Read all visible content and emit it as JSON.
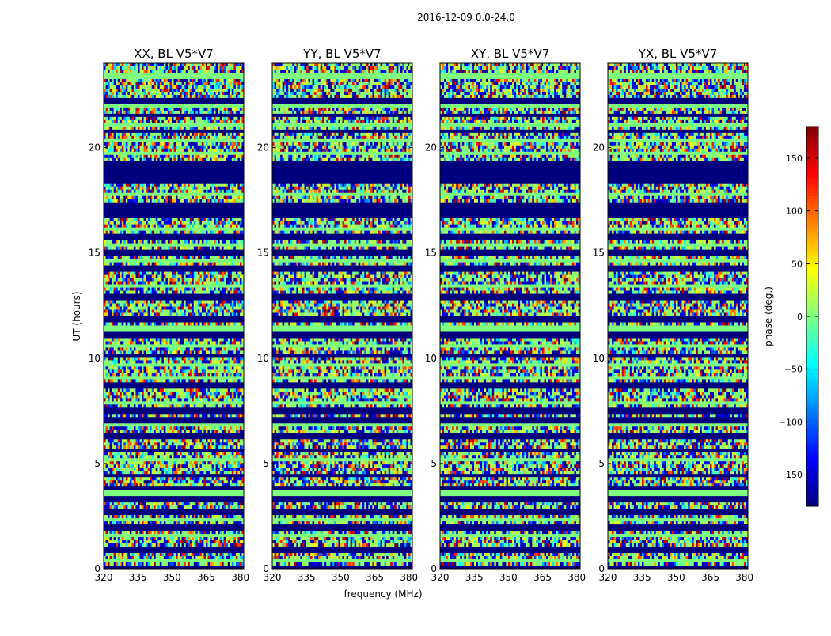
{
  "figure_title": "2016-12-09 0.0-24.0",
  "chart_data": {
    "type": "heatmap",
    "title": "2016-12-09 0.0-24.0",
    "xlabel": "frequency (MHz)",
    "ylabel": "UT (hours)",
    "xlim": [
      320,
      381.5
    ],
    "ylim": [
      0,
      24
    ],
    "x_ticks": [
      320,
      335,
      350,
      365,
      380
    ],
    "y_ticks": [
      0,
      5,
      10,
      15,
      20
    ],
    "panels": [
      {
        "title": "XX, BL V5*V7",
        "polarization": "XX",
        "baseline": "V5*V7"
      },
      {
        "title": "YY, BL V5*V7",
        "polarization": "YY",
        "baseline": "V5*V7"
      },
      {
        "title": "XY, BL V5*V7",
        "polarization": "XY",
        "baseline": "V5*V7"
      },
      {
        "title": "YX, BL V5*V7",
        "polarization": "YX",
        "baseline": "V5*V7"
      }
    ],
    "colorbar": {
      "label": "phase (deg.)",
      "colormap": "jet",
      "range": [
        -180,
        180
      ],
      "ticks": [
        150,
        100,
        50,
        0,
        -50,
        -100,
        -150
      ],
      "tick_labels": [
        "150",
        "100",
        "50",
        "0",
        "−50",
        "−100",
        "−150"
      ]
    },
    "features": {
      "flagged_dark_blue_hours": [
        0.05,
        0.9,
        1.95,
        2.7,
        3.3,
        3.85,
        4.4,
        5.6,
        6.3,
        7.05,
        7.5,
        8.7,
        10.15,
        11.1,
        11.85,
        12.9,
        14.25,
        15.0,
        15.75,
        16.95,
        17.35,
        18.6,
        19.3,
        20.8,
        21.5,
        22.2
      ],
      "flagged_wide_blue_bands": [
        [
          16.6,
          17.2
        ],
        [
          18.3,
          19.2
        ]
      ],
      "zero_phase_green_hours": [
        0.4,
        1.6,
        2.3,
        3.6,
        5.2,
        6.8,
        7.9,
        9.1,
        9.7,
        10.6,
        11.4,
        13.4,
        14.6,
        15.4,
        16.1,
        17.8,
        19.7,
        20.3,
        21.1,
        22.0,
        23.4
      ],
      "red_streak_hours": [
        21.3
      ]
    }
  }
}
